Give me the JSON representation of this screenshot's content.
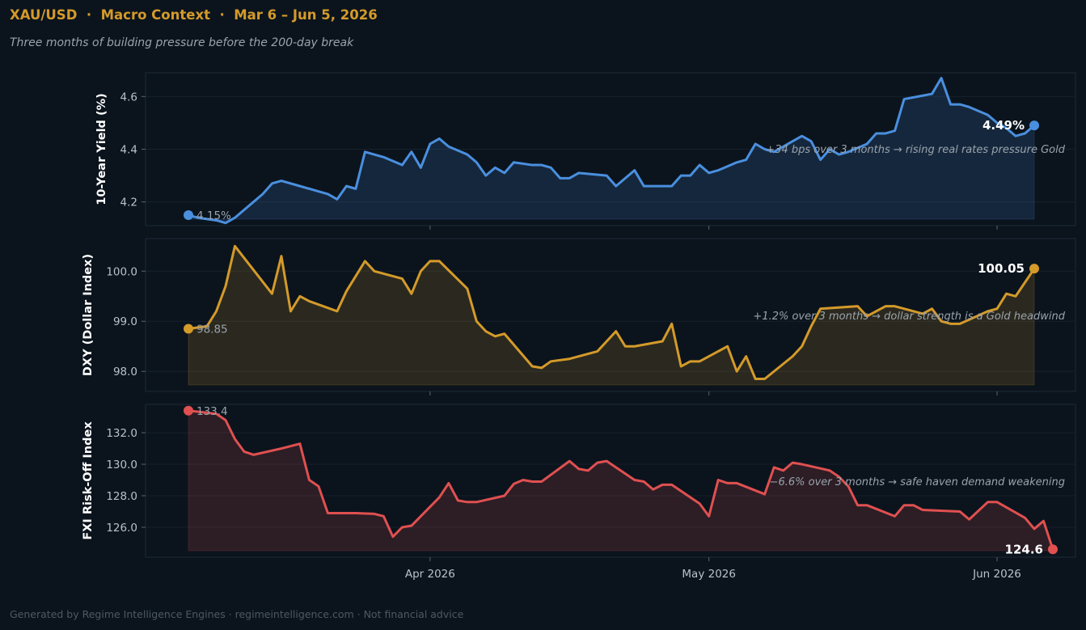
{
  "header": {
    "title": "XAU/USD  ·  Macro Context  ·  Mar 6 – Jun 5, 2026",
    "subtitle": "Three months of building pressure before the 200-day break"
  },
  "footer": "Generated by Regime Intelligence Engines · regimeintelligence.com · Not financial advice",
  "colors": {
    "background": "#0b141d",
    "title": "#d49a2a",
    "yield": "#4a8fdf",
    "dxy": "#d49a2a",
    "fxi": "#e05050"
  },
  "chart_data": {
    "type": "line",
    "x_start": "2026-03-06",
    "x_end": "2026-06-05",
    "x_ticks": [
      {
        "date": "2026-04-01",
        "label": "Apr 2026"
      },
      {
        "date": "2026-05-01",
        "label": "May 2026"
      },
      {
        "date": "2026-06-01",
        "label": "Jun 2026"
      }
    ],
    "panels": [
      {
        "id": "yield",
        "ylabel": "10-Year Yield (%)",
        "color": "#4a8fdf",
        "ylim": [
          4.11,
          4.69
        ],
        "yticks": [
          4.2,
          4.4,
          4.6
        ],
        "tick_format": 1,
        "start_label": "4.15%",
        "end_label": "4.49%",
        "annotation": "+34 bps over 3 months → rising real rates pressure Gold",
        "series": [
          [
            "2026-03-06",
            4.15
          ],
          [
            "2026-03-07",
            4.14
          ],
          [
            "2026-03-09",
            4.13
          ],
          [
            "2026-03-10",
            4.12
          ],
          [
            "2026-03-11",
            4.14
          ],
          [
            "2026-03-12",
            4.17
          ],
          [
            "2026-03-13",
            4.2
          ],
          [
            "2026-03-14",
            4.23
          ],
          [
            "2026-03-15",
            4.27
          ],
          [
            "2026-03-16",
            4.28
          ],
          [
            "2026-03-18",
            4.26
          ],
          [
            "2026-03-20",
            4.24
          ],
          [
            "2026-03-21",
            4.23
          ],
          [
            "2026-03-22",
            4.21
          ],
          [
            "2026-03-23",
            4.26
          ],
          [
            "2026-03-24",
            4.25
          ],
          [
            "2026-03-25",
            4.39
          ],
          [
            "2026-03-27",
            4.37
          ],
          [
            "2026-03-29",
            4.34
          ],
          [
            "2026-03-30",
            4.39
          ],
          [
            "2026-03-31",
            4.33
          ],
          [
            "2026-04-01",
            4.42
          ],
          [
            "2026-04-02",
            4.44
          ],
          [
            "2026-04-03",
            4.41
          ],
          [
            "2026-04-05",
            4.38
          ],
          [
            "2026-04-06",
            4.35
          ],
          [
            "2026-04-07",
            4.3
          ],
          [
            "2026-04-08",
            4.33
          ],
          [
            "2026-04-09",
            4.31
          ],
          [
            "2026-04-10",
            4.35
          ],
          [
            "2026-04-12",
            4.34
          ],
          [
            "2026-04-13",
            4.34
          ],
          [
            "2026-04-14",
            4.33
          ],
          [
            "2026-04-15",
            4.29
          ],
          [
            "2026-04-16",
            4.29
          ],
          [
            "2026-04-17",
            4.31
          ],
          [
            "2026-04-20",
            4.3
          ],
          [
            "2026-04-21",
            4.26
          ],
          [
            "2026-04-22",
            4.29
          ],
          [
            "2026-04-23",
            4.32
          ],
          [
            "2026-04-24",
            4.26
          ],
          [
            "2026-04-27",
            4.26
          ],
          [
            "2026-04-28",
            4.3
          ],
          [
            "2026-04-29",
            4.3
          ],
          [
            "2026-04-30",
            4.34
          ],
          [
            "2026-05-01",
            4.31
          ],
          [
            "2026-05-02",
            4.32
          ],
          [
            "2026-05-04",
            4.35
          ],
          [
            "2026-05-05",
            4.36
          ],
          [
            "2026-05-06",
            4.42
          ],
          [
            "2026-05-07",
            4.4
          ],
          [
            "2026-05-08",
            4.39
          ],
          [
            "2026-05-10",
            4.43
          ],
          [
            "2026-05-11",
            4.45
          ],
          [
            "2026-05-12",
            4.43
          ],
          [
            "2026-05-13",
            4.36
          ],
          [
            "2026-05-14",
            4.4
          ],
          [
            "2026-05-15",
            4.38
          ],
          [
            "2026-05-16",
            4.39
          ],
          [
            "2026-05-18",
            4.42
          ],
          [
            "2026-05-19",
            4.46
          ],
          [
            "2026-05-20",
            4.46
          ],
          [
            "2026-05-21",
            4.47
          ],
          [
            "2026-05-22",
            4.59
          ],
          [
            "2026-05-25",
            4.61
          ],
          [
            "2026-05-26",
            4.67
          ],
          [
            "2026-05-27",
            4.57
          ],
          [
            "2026-05-28",
            4.57
          ],
          [
            "2026-05-29",
            4.56
          ],
          [
            "2026-05-31",
            4.53
          ],
          [
            "2026-06-01",
            4.5
          ],
          [
            "2026-06-02",
            4.48
          ],
          [
            "2026-06-03",
            4.45
          ],
          [
            "2026-06-04",
            4.46
          ],
          [
            "2026-06-05",
            4.49
          ]
        ]
      },
      {
        "id": "dxy",
        "ylabel": "DXY (Dollar Index)",
        "color": "#d49a2a",
        "ylim": [
          97.6,
          100.65
        ],
        "yticks": [
          98.0,
          99.0,
          100.0
        ],
        "tick_format": 1,
        "start_label": "98.85",
        "end_label": "100.05",
        "annotation": "+1.2% over 3 months → dollar strength is a Gold headwind",
        "series": [
          [
            "2026-03-06",
            98.85
          ],
          [
            "2026-03-08",
            98.9
          ],
          [
            "2026-03-09",
            99.2
          ],
          [
            "2026-03-10",
            99.7
          ],
          [
            "2026-03-11",
            100.5
          ],
          [
            "2026-03-15",
            99.55
          ],
          [
            "2026-03-16",
            100.3
          ],
          [
            "2026-03-17",
            99.2
          ],
          [
            "2026-03-18",
            99.5
          ],
          [
            "2026-03-19",
            99.4
          ],
          [
            "2026-03-22",
            99.2
          ],
          [
            "2026-03-23",
            99.6
          ],
          [
            "2026-03-24",
            99.9
          ],
          [
            "2026-03-25",
            100.2
          ],
          [
            "2026-03-26",
            100.0
          ],
          [
            "2026-03-29",
            99.85
          ],
          [
            "2026-03-30",
            99.55
          ],
          [
            "2026-03-31",
            100.0
          ],
          [
            "2026-04-01",
            100.2
          ],
          [
            "2026-04-02",
            100.2
          ],
          [
            "2026-04-05",
            99.65
          ],
          [
            "2026-04-06",
            99.0
          ],
          [
            "2026-04-07",
            98.8
          ],
          [
            "2026-04-08",
            98.7
          ],
          [
            "2026-04-09",
            98.75
          ],
          [
            "2026-04-12",
            98.1
          ],
          [
            "2026-04-13",
            98.07
          ],
          [
            "2026-04-14",
            98.2
          ],
          [
            "2026-04-16",
            98.25
          ],
          [
            "2026-04-19",
            98.4
          ],
          [
            "2026-04-20",
            98.6
          ],
          [
            "2026-04-21",
            98.8
          ],
          [
            "2026-04-22",
            98.5
          ],
          [
            "2026-04-23",
            98.5
          ],
          [
            "2026-04-26",
            98.6
          ],
          [
            "2026-04-27",
            98.95
          ],
          [
            "2026-04-28",
            98.1
          ],
          [
            "2026-04-29",
            98.2
          ],
          [
            "2026-04-30",
            98.2
          ],
          [
            "2026-05-03",
            98.5
          ],
          [
            "2026-05-04",
            98.0
          ],
          [
            "2026-05-05",
            98.3
          ],
          [
            "2026-05-06",
            97.85
          ],
          [
            "2026-05-07",
            97.85
          ],
          [
            "2026-05-10",
            98.3
          ],
          [
            "2026-05-11",
            98.5
          ],
          [
            "2026-05-12",
            98.9
          ],
          [
            "2026-05-13",
            99.25
          ],
          [
            "2026-05-17",
            99.3
          ],
          [
            "2026-05-18",
            99.1
          ],
          [
            "2026-05-19",
            99.2
          ],
          [
            "2026-05-20",
            99.3
          ],
          [
            "2026-05-21",
            99.3
          ],
          [
            "2026-05-24",
            99.15
          ],
          [
            "2026-05-25",
            99.25
          ],
          [
            "2026-05-26",
            99.0
          ],
          [
            "2026-05-27",
            98.95
          ],
          [
            "2026-05-28",
            98.95
          ],
          [
            "2026-05-31",
            99.2
          ],
          [
            "2026-06-01",
            99.25
          ],
          [
            "2026-06-02",
            99.55
          ],
          [
            "2026-06-03",
            99.5
          ],
          [
            "2026-06-05",
            100.05
          ]
        ]
      },
      {
        "id": "fxi",
        "ylabel": "FXI Risk-Off Index",
        "color": "#e05050",
        "ylim": [
          124.1,
          133.8
        ],
        "yticks": [
          126.0,
          128.0,
          130.0,
          132.0
        ],
        "tick_format": 1,
        "start_label": "133.4",
        "end_label": "124.6",
        "annotation": "−6.6% over 3 months → safe haven demand weakening",
        "series": [
          [
            "2026-03-06",
            133.4
          ],
          [
            "2026-03-09",
            133.2
          ],
          [
            "2026-03-10",
            132.8
          ],
          [
            "2026-03-11",
            131.6
          ],
          [
            "2026-03-12",
            130.8
          ],
          [
            "2026-03-13",
            130.6
          ],
          [
            "2026-03-16",
            131.0
          ],
          [
            "2026-03-18",
            131.3
          ],
          [
            "2026-03-19",
            129.0
          ],
          [
            "2026-03-20",
            128.6
          ],
          [
            "2026-03-21",
            126.9
          ],
          [
            "2026-03-24",
            126.9
          ],
          [
            "2026-03-26",
            126.85
          ],
          [
            "2026-03-27",
            126.7
          ],
          [
            "2026-03-28",
            125.4
          ],
          [
            "2026-03-29",
            126.0
          ],
          [
            "2026-03-30",
            126.1
          ],
          [
            "2026-04-02",
            127.9
          ],
          [
            "2026-04-03",
            128.8
          ],
          [
            "2026-04-04",
            127.7
          ],
          [
            "2026-04-05",
            127.6
          ],
          [
            "2026-04-06",
            127.6
          ],
          [
            "2026-04-09",
            128.0
          ],
          [
            "2026-04-10",
            128.75
          ],
          [
            "2026-04-11",
            129.0
          ],
          [
            "2026-04-12",
            128.9
          ],
          [
            "2026-04-13",
            128.9
          ],
          [
            "2026-04-16",
            130.2
          ],
          [
            "2026-04-17",
            129.7
          ],
          [
            "2026-04-18",
            129.6
          ],
          [
            "2026-04-19",
            130.1
          ],
          [
            "2026-04-20",
            130.2
          ],
          [
            "2026-04-23",
            129.0
          ],
          [
            "2026-04-24",
            128.9
          ],
          [
            "2026-04-25",
            128.4
          ],
          [
            "2026-04-26",
            128.7
          ],
          [
            "2026-04-27",
            128.7
          ],
          [
            "2026-04-30",
            127.5
          ],
          [
            "2026-05-01",
            126.7
          ],
          [
            "2026-05-02",
            129.0
          ],
          [
            "2026-05-03",
            128.8
          ],
          [
            "2026-05-04",
            128.8
          ],
          [
            "2026-05-07",
            128.1
          ],
          [
            "2026-05-08",
            129.8
          ],
          [
            "2026-05-09",
            129.6
          ],
          [
            "2026-05-10",
            130.1
          ],
          [
            "2026-05-11",
            130.0
          ],
          [
            "2026-05-14",
            129.6
          ],
          [
            "2026-05-15",
            129.2
          ],
          [
            "2026-05-16",
            128.6
          ],
          [
            "2026-05-17",
            127.4
          ],
          [
            "2026-05-18",
            127.4
          ],
          [
            "2026-05-21",
            126.7
          ],
          [
            "2026-05-22",
            127.4
          ],
          [
            "2026-05-23",
            127.4
          ],
          [
            "2026-05-24",
            127.1
          ],
          [
            "2026-05-28",
            127.0
          ],
          [
            "2026-05-29",
            126.5
          ],
          [
            "2026-05-31",
            127.6
          ],
          [
            "2026-06-01",
            127.6
          ],
          [
            "2026-06-04",
            126.6
          ],
          [
            "2026-06-05",
            125.9
          ],
          [
            "2026-06-06",
            126.4
          ],
          [
            "2026-06-07",
            124.6
          ]
        ]
      }
    ]
  }
}
